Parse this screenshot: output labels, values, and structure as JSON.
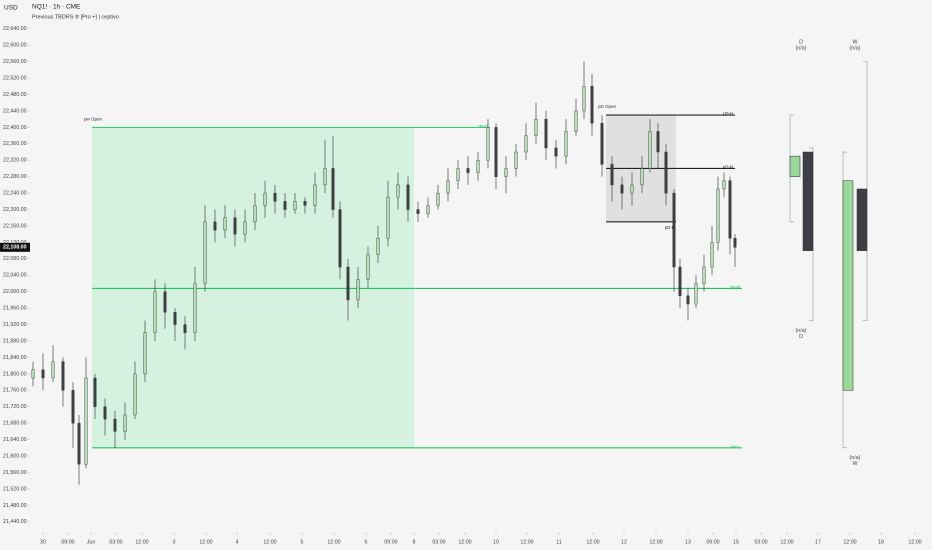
{
  "chart_data": {
    "type": "candlestick",
    "currency": "USD",
    "title": "NQ1! · 1h · CME",
    "subtitle": "Previous TBDRS ® [Pro +] | ceptivo",
    "colors": {
      "up": "#b4dfb6",
      "down": "#3d3f45",
      "outline": "#2b2b2b"
    },
    "xlim": [
      0,
      902
    ],
    "ylim": [
      21420,
      22710
    ],
    "yticks": [
      {
        "value": 21440,
        "label": "21,440.00"
      },
      {
        "value": 21480,
        "label": "21,480.00"
      },
      {
        "value": 21520,
        "label": "21,520.00"
      },
      {
        "value": 21560,
        "label": "21,560.00"
      },
      {
        "value": 21600,
        "label": "21,600.00"
      },
      {
        "value": 21640,
        "label": "21,640.00"
      },
      {
        "value": 21680,
        "label": "21,680.00"
      },
      {
        "value": 21720,
        "label": "21,720.00"
      },
      {
        "value": 21760,
        "label": "21,760.00"
      },
      {
        "value": 21800,
        "label": "21,800.00"
      },
      {
        "value": 21840,
        "label": "21,840.00"
      },
      {
        "value": 21880,
        "label": "21,880.00"
      },
      {
        "value": 21920,
        "label": "21,920.00"
      },
      {
        "value": 21960,
        "label": "21,960.00"
      },
      {
        "value": 22000,
        "label": "22,000.00"
      },
      {
        "value": 22040,
        "label": "22,040.00"
      },
      {
        "value": 22080,
        "label": "22,080.00"
      },
      {
        "value": 22120,
        "label": "22,120.00"
      },
      {
        "value": 22160,
        "label": "22,160.00"
      },
      {
        "value": 22200,
        "label": "22,200.00"
      },
      {
        "value": 22240,
        "label": "22,240.00"
      },
      {
        "value": 22280,
        "label": "22,280.00"
      },
      {
        "value": 22320,
        "label": "22,320.00"
      },
      {
        "value": 22360,
        "label": "22,360.00"
      },
      {
        "value": 22400,
        "label": "22,400.00"
      },
      {
        "value": 22440,
        "label": "22,440.00"
      },
      {
        "value": 22480,
        "label": "22,480.00"
      },
      {
        "value": 22520,
        "label": "22,520.00"
      },
      {
        "value": 22560,
        "label": "22,560.00"
      },
      {
        "value": 22600,
        "label": "22,600.00"
      },
      {
        "value": 22640,
        "label": "22,640.00"
      }
    ],
    "xticks": [
      {
        "value": 13,
        "label": "30"
      },
      {
        "value": 38,
        "label": "09:00"
      },
      {
        "value": 61,
        "label": "Jun"
      },
      {
        "value": 86,
        "label": "03:00"
      },
      {
        "value": 112,
        "label": "12:00"
      },
      {
        "value": 144,
        "label": "3"
      },
      {
        "value": 176,
        "label": "12:00"
      },
      {
        "value": 207,
        "label": "4"
      },
      {
        "value": 240,
        "label": "12:00"
      },
      {
        "value": 272,
        "label": "5"
      },
      {
        "value": 304,
        "label": "12:00"
      },
      {
        "value": 336,
        "label": "6"
      },
      {
        "value": 361,
        "label": "09:00"
      },
      {
        "value": 384,
        "label": "8"
      },
      {
        "value": 409,
        "label": "03:00"
      },
      {
        "value": 435,
        "label": "12:00"
      },
      {
        "value": 466,
        "label": "10"
      },
      {
        "value": 497,
        "label": "12:00"
      },
      {
        "value": 529,
        "label": "11"
      },
      {
        "value": 563,
        "label": "12:00"
      },
      {
        "value": 594,
        "label": "12"
      },
      {
        "value": 626,
        "label": "12:00"
      },
      {
        "value": 658,
        "label": "13"
      },
      {
        "value": 683,
        "label": "09:00"
      },
      {
        "value": 706,
        "label": "15"
      },
      {
        "value": 731,
        "label": "03:00"
      },
      {
        "value": 757,
        "label": "12:00"
      },
      {
        "value": 788,
        "label": "17"
      },
      {
        "value": 820,
        "label": "12:00"
      },
      {
        "value": 851,
        "label": "18"
      },
      {
        "value": 885,
        "label": "12:00"
      }
    ],
    "last_price": {
      "value": 22108,
      "label": "22,108.00"
    },
    "candles": {
      "x": [
        3,
        13,
        23,
        33,
        43,
        49,
        56,
        65,
        75,
        85,
        95,
        105,
        115,
        125,
        135,
        145,
        155,
        165,
        175,
        185,
        195,
        205,
        215,
        225,
        235,
        245,
        255,
        265,
        275,
        285,
        295,
        303,
        310,
        318,
        328,
        338,
        348,
        358,
        368,
        378,
        388,
        398,
        408,
        418,
        428,
        438,
        448,
        458,
        466,
        476,
        486,
        496,
        506,
        516,
        526,
        536,
        546,
        554,
        562,
        572,
        582,
        592,
        602,
        612,
        620,
        628,
        636,
        644,
        650,
        658,
        666,
        674,
        682,
        688,
        694,
        700,
        705
      ],
      "open": [
        21790,
        21810,
        21790,
        21830,
        21760,
        21680,
        21580,
        21790,
        21720,
        21690,
        21660,
        21700,
        21800,
        21900,
        22000,
        21950,
        21920,
        21900,
        22020,
        22170,
        22150,
        22180,
        22140,
        22170,
        22210,
        22240,
        22220,
        22200,
        22220,
        22210,
        22260,
        22300,
        22200,
        22060,
        21980,
        22030,
        22090,
        22130,
        22230,
        22260,
        22200,
        22190,
        22210,
        22240,
        22270,
        22300,
        22290,
        22320,
        22400,
        22280,
        22300,
        22340,
        22380,
        22420,
        22350,
        22330,
        22390,
        22440,
        22500,
        22410,
        22310,
        22260,
        22240,
        22260,
        22300,
        22390,
        22340,
        22240,
        22060,
        21990,
        21970,
        22020,
        22060,
        22120,
        22250,
        22270,
        22130
      ],
      "high": [
        21830,
        21850,
        21870,
        21840,
        21780,
        21700,
        21840,
        21800,
        21740,
        21710,
        21730,
        21830,
        21930,
        22030,
        22020,
        21960,
        21940,
        22060,
        22210,
        22200,
        22210,
        22200,
        22200,
        22240,
        22270,
        22260,
        22240,
        22240,
        22230,
        22290,
        22370,
        22380,
        22220,
        22080,
        22060,
        22110,
        22160,
        22270,
        22290,
        22280,
        22220,
        22230,
        22260,
        22300,
        22320,
        22330,
        22340,
        22420,
        22410,
        22330,
        22360,
        22410,
        22460,
        22440,
        22370,
        22420,
        22470,
        22560,
        22530,
        22430,
        22330,
        22280,
        22290,
        22330,
        22420,
        22410,
        22360,
        22250,
        22080,
        22010,
        22040,
        22090,
        22160,
        22280,
        22290,
        22280,
        22140
      ],
      "low": [
        21770,
        21760,
        21780,
        21720,
        21620,
        21530,
        21570,
        21690,
        21650,
        21620,
        21640,
        21690,
        21780,
        21880,
        21910,
        21880,
        21860,
        21880,
        22000,
        22120,
        22130,
        22110,
        22120,
        22150,
        22180,
        22190,
        22180,
        22190,
        22190,
        22190,
        22240,
        22180,
        22030,
        21930,
        21960,
        22010,
        22070,
        22110,
        22200,
        22170,
        22170,
        22180,
        22200,
        22220,
        22250,
        22260,
        22270,
        22300,
        22250,
        22240,
        22280,
        22320,
        22360,
        22320,
        22300,
        22310,
        22380,
        22420,
        22380,
        22280,
        22220,
        22200,
        22210,
        22240,
        22290,
        22300,
        22210,
        22000,
        21960,
        21930,
        21960,
        22000,
        22040,
        22100,
        22230,
        22090,
        22060
      ],
      "close": [
        21810,
        21790,
        21830,
        21760,
        21680,
        21580,
        21790,
        21720,
        21690,
        21660,
        21700,
        21800,
        21900,
        22000,
        21950,
        21920,
        21900,
        22020,
        22170,
        22150,
        22180,
        22140,
        22170,
        22210,
        22240,
        22220,
        22200,
        22220,
        22210,
        22260,
        22300,
        22200,
        22060,
        21980,
        22030,
        22090,
        22130,
        22230,
        22260,
        22200,
        22190,
        22210,
        22240,
        22270,
        22300,
        22290,
        22320,
        22400,
        22280,
        22300,
        22340,
        22380,
        22420,
        22350,
        22330,
        22390,
        22440,
        22500,
        22410,
        22310,
        22260,
        22240,
        22260,
        22300,
        22390,
        22340,
        22240,
        22060,
        21990,
        21970,
        22020,
        22060,
        22120,
        22250,
        22270,
        22130,
        22108
      ]
    },
    "zones": [
      {
        "label": "pw Open",
        "x0": 62,
        "x1": 384,
        "top": 22400,
        "bottom": 21620,
        "color": "#d4f2df"
      },
      {
        "label": "pD Open",
        "x0": 576,
        "x1": 646,
        "top": 22430,
        "bottom": 22170,
        "color": "#e0e0e0"
      }
    ],
    "levels": [
      {
        "label": "pw-H",
        "value": 22400,
        "x0": 62,
        "x1": 460,
        "color": "#22c55e"
      },
      {
        "label": "pw-M",
        "value": 22008,
        "x0": 62,
        "x1": 712,
        "color": "#22c55e"
      },
      {
        "label": "pw-L",
        "value": 21620,
        "x0": 62,
        "x1": 712,
        "color": "#22c55e"
      },
      {
        "label": "pD-H",
        "value": 22430,
        "x0": 576,
        "x1": 705,
        "color": "#222222"
      },
      {
        "label": "pD-M",
        "value": 22300,
        "x0": 576,
        "x1": 705,
        "color": "#222222"
      },
      {
        "label": "pD-L",
        "value": 22170,
        "x0": 576,
        "x1": 646,
        "color": "#222222"
      }
    ],
    "htf": [
      {
        "label": "D",
        "note": "(n/a)",
        "x": 771,
        "candles": [
          {
            "x": 765,
            "open": 22280,
            "high": 22430,
            "low": 22170,
            "close": 22330
          },
          {
            "x": 778,
            "open": 22340,
            "high": 22350,
            "low": 21930,
            "close": 22100
          }
        ]
      },
      {
        "label": "W",
        "note": "(n/a)",
        "x": 825,
        "candles": [
          {
            "x": 818,
            "open": 21760,
            "high": 22340,
            "low": 21620,
            "close": 22270
          },
          {
            "x": 832,
            "open": 22250,
            "high": 22560,
            "low": 21930,
            "close": 22100
          }
        ]
      }
    ]
  }
}
